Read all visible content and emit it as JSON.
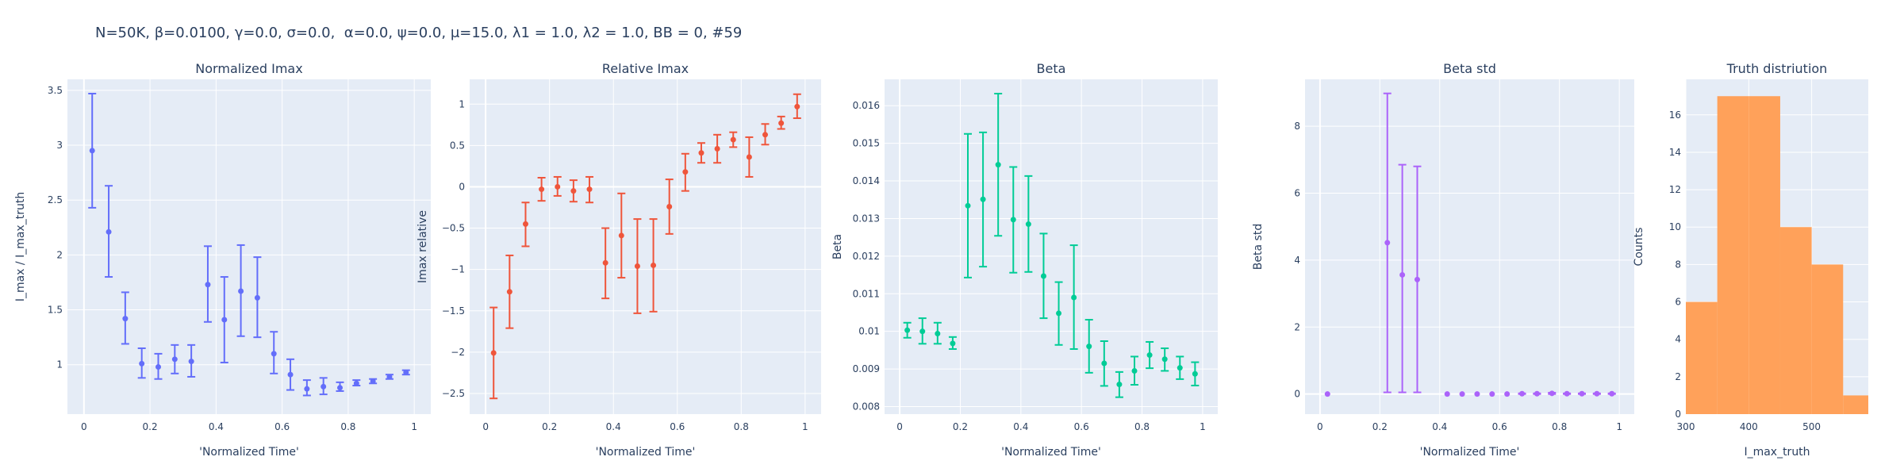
{
  "figure_title": "N=50K, β=0.0100, γ=0.0, σ=0.0,  α=0.0, ψ=0.0, μ=15.0, λ1 = 1.0, λ2 = 1.0, BB = 0, #59",
  "chart_data": [
    {
      "type": "scatter",
      "title": "Normalized Imax",
      "xlabel": "'Normalized Time'",
      "ylabel": "I_max / I_max_truth",
      "color": "#636efa",
      "xlim": [
        -0.05,
        1.05
      ],
      "ylim": [
        0.55,
        3.6
      ],
      "xticks": [
        0,
        0.2,
        0.4,
        0.6,
        0.8,
        1
      ],
      "xtick_labels": [
        "0",
        "0.2",
        "0.4",
        "0.6",
        "0.8",
        "1"
      ],
      "yticks": [
        1,
        1.5,
        2,
        2.5,
        3,
        3.5
      ],
      "ytick_labels": [
        "1",
        "1.5",
        "2",
        "2.5",
        "3",
        "3.5"
      ],
      "points": [
        {
          "x": 0.025,
          "y": 2.95,
          "lo": 2.43,
          "hi": 3.47
        },
        {
          "x": 0.075,
          "y": 2.21,
          "lo": 1.8,
          "hi": 2.63
        },
        {
          "x": 0.125,
          "y": 1.42,
          "lo": 1.19,
          "hi": 1.66
        },
        {
          "x": 0.175,
          "y": 1.01,
          "lo": 0.88,
          "hi": 1.15
        },
        {
          "x": 0.225,
          "y": 0.98,
          "lo": 0.87,
          "hi": 1.1
        },
        {
          "x": 0.275,
          "y": 1.05,
          "lo": 0.92,
          "hi": 1.18
        },
        {
          "x": 0.325,
          "y": 1.03,
          "lo": 0.89,
          "hi": 1.18
        },
        {
          "x": 0.375,
          "y": 1.73,
          "lo": 1.39,
          "hi": 2.08
        },
        {
          "x": 0.425,
          "y": 1.41,
          "lo": 1.02,
          "hi": 1.8
        },
        {
          "x": 0.475,
          "y": 1.67,
          "lo": 1.26,
          "hi": 2.09
        },
        {
          "x": 0.525,
          "y": 1.61,
          "lo": 1.25,
          "hi": 1.98
        },
        {
          "x": 0.575,
          "y": 1.1,
          "lo": 0.92,
          "hi": 1.3
        },
        {
          "x": 0.625,
          "y": 0.91,
          "lo": 0.77,
          "hi": 1.05
        },
        {
          "x": 0.675,
          "y": 0.78,
          "lo": 0.72,
          "hi": 0.86
        },
        {
          "x": 0.725,
          "y": 0.8,
          "lo": 0.73,
          "hi": 0.88
        },
        {
          "x": 0.775,
          "y": 0.79,
          "lo": 0.76,
          "hi": 0.84
        },
        {
          "x": 0.825,
          "y": 0.83,
          "lo": 0.81,
          "hi": 0.86
        },
        {
          "x": 0.875,
          "y": 0.85,
          "lo": 0.83,
          "hi": 0.87
        },
        {
          "x": 0.925,
          "y": 0.89,
          "lo": 0.87,
          "hi": 0.91
        },
        {
          "x": 0.975,
          "y": 0.93,
          "lo": 0.91,
          "hi": 0.95
        }
      ]
    },
    {
      "type": "scatter",
      "title": "Relative Imax",
      "xlabel": "'Normalized Time'",
      "ylabel": "Imax relative",
      "color": "#ef553b",
      "xlim": [
        -0.05,
        1.05
      ],
      "ylim": [
        -2.75,
        1.3
      ],
      "xticks": [
        0,
        0.2,
        0.4,
        0.6,
        0.8,
        1
      ],
      "xtick_labels": [
        "0",
        "0.2",
        "0.4",
        "0.6",
        "0.8",
        "1"
      ],
      "yticks": [
        -2.5,
        -2,
        -1.5,
        -1,
        -0.5,
        0,
        0.5,
        1
      ],
      "ytick_labels": [
        "−2.5",
        "−2",
        "−1.5",
        "−1",
        "−0.5",
        "0",
        "0.5",
        "1"
      ],
      "points": [
        {
          "x": 0.025,
          "y": -2.01,
          "lo": -2.56,
          "hi": -1.46
        },
        {
          "x": 0.075,
          "y": -1.27,
          "lo": -1.71,
          "hi": -0.83
        },
        {
          "x": 0.125,
          "y": -0.45,
          "lo": -0.72,
          "hi": -0.19
        },
        {
          "x": 0.175,
          "y": -0.03,
          "lo": -0.17,
          "hi": 0.11
        },
        {
          "x": 0.225,
          "y": 0.0,
          "lo": -0.11,
          "hi": 0.12
        },
        {
          "x": 0.275,
          "y": -0.05,
          "lo": -0.18,
          "hi": 0.08
        },
        {
          "x": 0.325,
          "y": -0.03,
          "lo": -0.19,
          "hi": 0.12
        },
        {
          "x": 0.375,
          "y": -0.92,
          "lo": -1.35,
          "hi": -0.5
        },
        {
          "x": 0.425,
          "y": -0.59,
          "lo": -1.1,
          "hi": -0.08
        },
        {
          "x": 0.475,
          "y": -0.96,
          "lo": -1.53,
          "hi": -0.39
        },
        {
          "x": 0.525,
          "y": -0.95,
          "lo": -1.51,
          "hi": -0.39
        },
        {
          "x": 0.575,
          "y": -0.24,
          "lo": -0.57,
          "hi": 0.09
        },
        {
          "x": 0.625,
          "y": 0.18,
          "lo": -0.05,
          "hi": 0.4
        },
        {
          "x": 0.675,
          "y": 0.41,
          "lo": 0.29,
          "hi": 0.53
        },
        {
          "x": 0.725,
          "y": 0.46,
          "lo": 0.29,
          "hi": 0.63
        },
        {
          "x": 0.775,
          "y": 0.57,
          "lo": 0.48,
          "hi": 0.66
        },
        {
          "x": 0.825,
          "y": 0.36,
          "lo": 0.12,
          "hi": 0.6
        },
        {
          "x": 0.875,
          "y": 0.63,
          "lo": 0.51,
          "hi": 0.76
        },
        {
          "x": 0.925,
          "y": 0.77,
          "lo": 0.7,
          "hi": 0.85
        },
        {
          "x": 0.975,
          "y": 0.97,
          "lo": 0.83,
          "hi": 1.12
        }
      ]
    },
    {
      "type": "scatter",
      "title": "Beta",
      "xlabel": "'Normalized Time'",
      "ylabel": "Beta",
      "color": "#00cc96",
      "xlim": [
        -0.05,
        1.05
      ],
      "ylim": [
        0.0078,
        0.0167
      ],
      "xticks": [
        0,
        0.2,
        0.4,
        0.6,
        0.8,
        1
      ],
      "xtick_labels": [
        "0",
        "0.2",
        "0.4",
        "0.6",
        "0.8",
        "1"
      ],
      "yticks": [
        0.008,
        0.009,
        0.01,
        0.011,
        0.012,
        0.013,
        0.014,
        0.015,
        0.016
      ],
      "ytick_labels": [
        "0.008",
        "0.009",
        "0.01",
        "0.011",
        "0.012",
        "0.013",
        "0.014",
        "0.015",
        "0.016"
      ],
      "points": [
        {
          "x": 0.025,
          "y": 0.01003,
          "lo": 0.00983,
          "hi": 0.01023
        },
        {
          "x": 0.075,
          "y": 0.01,
          "lo": 0.00967,
          "hi": 0.01035
        },
        {
          "x": 0.125,
          "y": 0.00994,
          "lo": 0.00967,
          "hi": 0.01023
        },
        {
          "x": 0.175,
          "y": 0.00968,
          "lo": 0.00953,
          "hi": 0.00985
        },
        {
          "x": 0.225,
          "y": 0.01334,
          "lo": 0.01143,
          "hi": 0.01525
        },
        {
          "x": 0.275,
          "y": 0.01351,
          "lo": 0.01172,
          "hi": 0.01529
        },
        {
          "x": 0.325,
          "y": 0.01443,
          "lo": 0.01254,
          "hi": 0.01632
        },
        {
          "x": 0.375,
          "y": 0.01297,
          "lo": 0.01156,
          "hi": 0.01437
        },
        {
          "x": 0.425,
          "y": 0.01285,
          "lo": 0.01158,
          "hi": 0.01413
        },
        {
          "x": 0.475,
          "y": 0.01147,
          "lo": 0.01035,
          "hi": 0.0126
        },
        {
          "x": 0.525,
          "y": 0.01048,
          "lo": 0.00964,
          "hi": 0.01131
        },
        {
          "x": 0.575,
          "y": 0.0109,
          "lo": 0.00953,
          "hi": 0.01229
        },
        {
          "x": 0.625,
          "y": 0.0096,
          "lo": 0.0089,
          "hi": 0.01031
        },
        {
          "x": 0.675,
          "y": 0.00915,
          "lo": 0.00855,
          "hi": 0.00974
        },
        {
          "x": 0.725,
          "y": 0.00859,
          "lo": 0.00825,
          "hi": 0.00892
        },
        {
          "x": 0.775,
          "y": 0.00895,
          "lo": 0.00858,
          "hi": 0.00933
        },
        {
          "x": 0.825,
          "y": 0.00937,
          "lo": 0.00902,
          "hi": 0.00972
        },
        {
          "x": 0.875,
          "y": 0.00926,
          "lo": 0.00895,
          "hi": 0.00955
        },
        {
          "x": 0.925,
          "y": 0.00903,
          "lo": 0.00873,
          "hi": 0.00933
        },
        {
          "x": 0.975,
          "y": 0.00887,
          "lo": 0.00856,
          "hi": 0.00918
        }
      ]
    },
    {
      "type": "scatter",
      "title": "Beta std",
      "xlabel": "'Normalized Time'",
      "ylabel": "Beta std",
      "color": "#ab63fa",
      "xlim": [
        -0.05,
        1.05
      ],
      "ylim": [
        -0.6,
        9.4
      ],
      "xticks": [
        0,
        0.2,
        0.4,
        0.6,
        0.8,
        1
      ],
      "xtick_labels": [
        "0",
        "0.2",
        "0.4",
        "0.6",
        "0.8",
        "1"
      ],
      "yticks": [
        0,
        2,
        4,
        6,
        8
      ],
      "ytick_labels": [
        "0",
        "2",
        "4",
        "6",
        "8"
      ],
      "points": [
        {
          "x": 0.025,
          "y": 0.0,
          "lo": 0.0,
          "hi": 0.0
        },
        {
          "x": 0.225,
          "y": 4.52,
          "lo": 0.05,
          "hi": 8.98
        },
        {
          "x": 0.275,
          "y": 3.56,
          "lo": 0.05,
          "hi": 6.85
        },
        {
          "x": 0.325,
          "y": 3.42,
          "lo": 0.05,
          "hi": 6.8
        },
        {
          "x": 0.425,
          "y": 0.0,
          "lo": 0.0,
          "hi": 0.0
        },
        {
          "x": 0.475,
          "y": 0.0,
          "lo": 0.0,
          "hi": 0.0
        },
        {
          "x": 0.525,
          "y": 0.0,
          "lo": 0.0,
          "hi": 0.0
        },
        {
          "x": 0.575,
          "y": 0.0,
          "lo": 0.0,
          "hi": 0.0
        },
        {
          "x": 0.625,
          "y": 0.0,
          "lo": 0.0,
          "hi": 0.0
        },
        {
          "x": 0.675,
          "y": 0.01,
          "lo": 0.0,
          "hi": 0.02
        },
        {
          "x": 0.725,
          "y": 0.01,
          "lo": 0.0,
          "hi": 0.02
        },
        {
          "x": 0.775,
          "y": 0.02,
          "lo": 0.0,
          "hi": 0.04
        },
        {
          "x": 0.825,
          "y": 0.01,
          "lo": 0.0,
          "hi": 0.02
        },
        {
          "x": 0.875,
          "y": 0.01,
          "lo": 0.0,
          "hi": 0.02
        },
        {
          "x": 0.925,
          "y": 0.01,
          "lo": 0.0,
          "hi": 0.02
        },
        {
          "x": 0.975,
          "y": 0.01,
          "lo": 0.0,
          "hi": 0.02
        }
      ]
    },
    {
      "type": "bar",
      "title": "Truth distriution",
      "xlabel": "I_max_truth",
      "ylabel": "Counts",
      "color": "#ffa15a",
      "xlim": [
        300,
        590
      ],
      "ylim": [
        0,
        17.9
      ],
      "xticks": [
        300,
        400,
        500
      ],
      "xtick_labels": [
        "300",
        "400",
        "500"
      ],
      "yticks": [
        0,
        2,
        4,
        6,
        8,
        10,
        12,
        14,
        16
      ],
      "ytick_labels": [
        "0",
        "2",
        "4",
        "6",
        "8",
        "10",
        "12",
        "14",
        "16"
      ],
      "bins": [
        {
          "x0": 300,
          "x1": 350,
          "count": 6
        },
        {
          "x0": 350,
          "x1": 400,
          "count": 17
        },
        {
          "x0": 400,
          "x1": 450,
          "count": 17
        },
        {
          "x0": 450,
          "x1": 500,
          "count": 10
        },
        {
          "x0": 500,
          "x1": 550,
          "count": 8
        },
        {
          "x0": 550,
          "x1": 600,
          "count": 1
        }
      ]
    }
  ]
}
